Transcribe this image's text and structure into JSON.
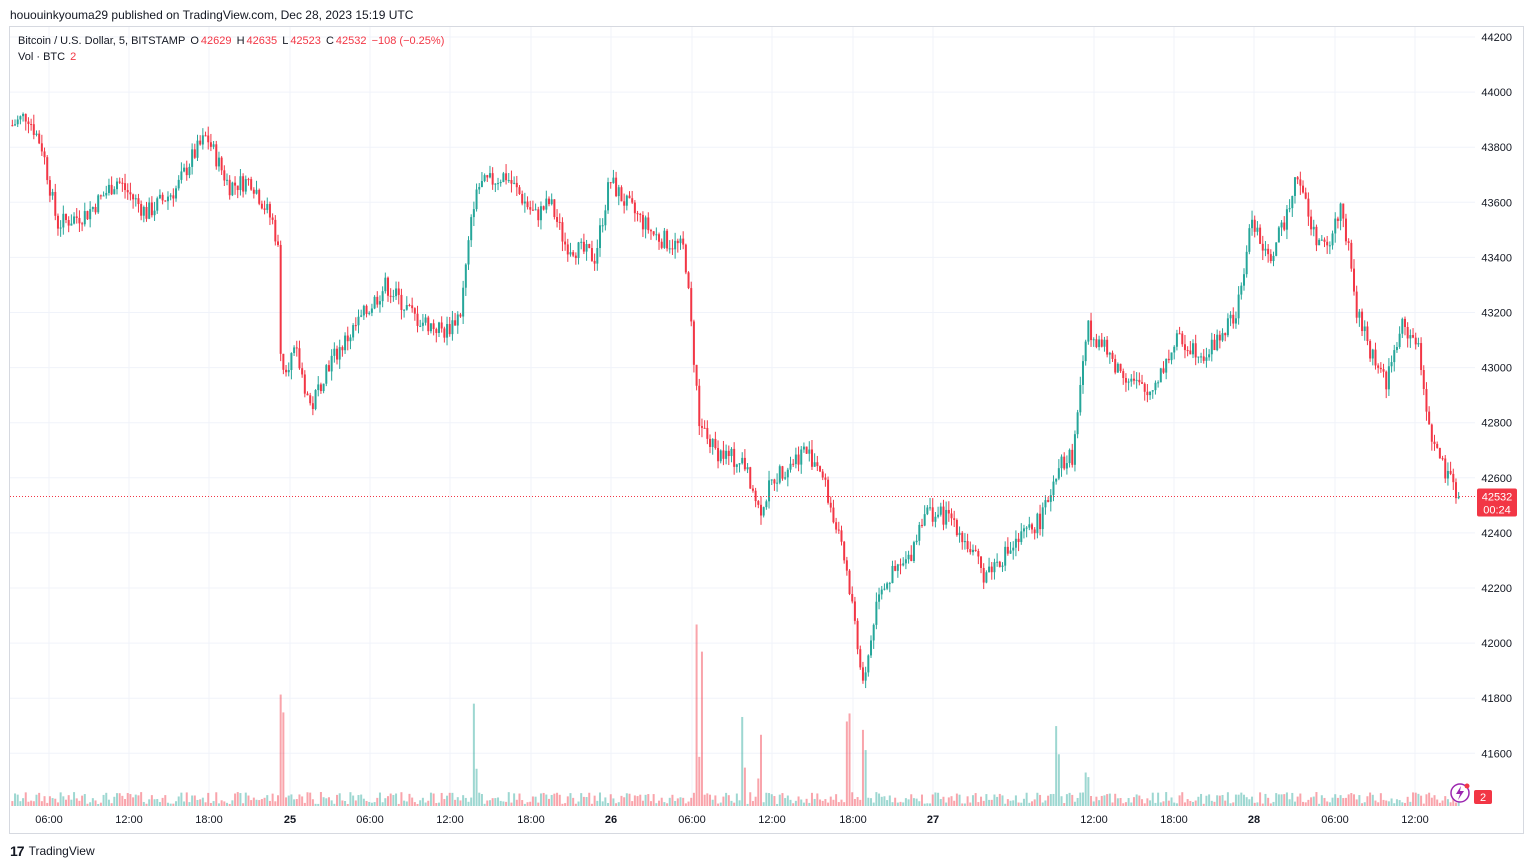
{
  "publisher_line": "hououinkyouma29 published on TradingView.com, Dec 28, 2023 15:19 UTC",
  "legend": {
    "symbol": "Bitcoin / U.S. Dollar, 5, BITSTAMP",
    "o_label": "O",
    "o_value": "42629",
    "h_label": "H",
    "h_value": "42635",
    "l_label": "L",
    "l_value": "42523",
    "c_label": "C",
    "c_value": "42532",
    "change": "−108 (−0.25%)",
    "vol_label": "Vol · BTC",
    "vol_value": "2"
  },
  "price_tag": {
    "price": "42532",
    "countdown": "00:24"
  },
  "volume_tag": "2",
  "footer": {
    "logo": "17",
    "brand": "TradingView"
  },
  "colors": {
    "up": "#26a69a",
    "down": "#f23645",
    "grid": "#f0f3fa",
    "text": "#131722"
  },
  "chart_data": {
    "type": "candlestick",
    "symbol": "BTCUSD",
    "exchange": "BITSTAMP",
    "interval": "5",
    "ylim": [
      41450,
      44250
    ],
    "y_ticks": [
      44200,
      44000,
      43800,
      43600,
      43400,
      43200,
      43000,
      42800,
      42600,
      42400,
      42200,
      42000,
      41800,
      41600
    ],
    "x_ticks": [
      "06:00",
      "12:00",
      "18:00",
      "25",
      "06:00",
      "12:00",
      "18:00",
      "26",
      "06:00",
      "12:00",
      "18:00",
      "27",
      "12:00",
      "18:00",
      "28",
      "06:00",
      "12:00"
    ],
    "last_price": 42532,
    "grid": true,
    "price_path_approx": [
      [
        0,
        43880
      ],
      [
        0.01,
        43920
      ],
      [
        0.02,
        43800
      ],
      [
        0.03,
        43520
      ],
      [
        0.05,
        43560
      ],
      [
        0.07,
        43680
      ],
      [
        0.09,
        43560
      ],
      [
        0.11,
        43650
      ],
      [
        0.12,
        43760
      ],
      [
        0.13,
        43840
      ],
      [
        0.145,
        43660
      ],
      [
        0.16,
        43680
      ],
      [
        0.175,
        43520
      ],
      [
        0.178,
        43420
      ],
      [
        0.18,
        43000
      ],
      [
        0.19,
        43050
      ],
      [
        0.2,
        42850
      ],
      [
        0.21,
        43000
      ],
      [
        0.23,
        43150
      ],
      [
        0.25,
        43300
      ],
      [
        0.27,
        43180
      ],
      [
        0.29,
        43130
      ],
      [
        0.3,
        43200
      ],
      [
        0.31,
        43650
      ],
      [
        0.33,
        43700
      ],
      [
        0.35,
        43550
      ],
      [
        0.36,
        43600
      ],
      [
        0.37,
        43450
      ],
      [
        0.39,
        43400
      ],
      [
        0.4,
        43680
      ],
      [
        0.41,
        43600
      ],
      [
        0.43,
        43480
      ],
      [
        0.45,
        43430
      ],
      [
        0.46,
        42800
      ],
      [
        0.47,
        42700
      ],
      [
        0.49,
        42650
      ],
      [
        0.5,
        42480
      ],
      [
        0.51,
        42600
      ],
      [
        0.53,
        42700
      ],
      [
        0.54,
        42650
      ],
      [
        0.55,
        42450
      ],
      [
        0.56,
        42220
      ],
      [
        0.57,
        41850
      ],
      [
        0.58,
        42200
      ],
      [
        0.59,
        42250
      ],
      [
        0.6,
        42300
      ],
      [
        0.61,
        42480
      ],
      [
        0.63,
        42450
      ],
      [
        0.65,
        42250
      ],
      [
        0.67,
        42350
      ],
      [
        0.69,
        42460
      ],
      [
        0.7,
        42650
      ],
      [
        0.71,
        42680
      ],
      [
        0.72,
        43150
      ],
      [
        0.74,
        43000
      ],
      [
        0.76,
        42900
      ],
      [
        0.78,
        43100
      ],
      [
        0.8,
        43050
      ],
      [
        0.82,
        43200
      ],
      [
        0.83,
        43550
      ],
      [
        0.84,
        43380
      ],
      [
        0.85,
        43500
      ],
      [
        0.86,
        43720
      ],
      [
        0.87,
        43500
      ],
      [
        0.88,
        43420
      ],
      [
        0.89,
        43600
      ],
      [
        0.9,
        43200
      ],
      [
        0.91,
        43050
      ],
      [
        0.92,
        42950
      ],
      [
        0.93,
        43150
      ],
      [
        0.94,
        43100
      ],
      [
        0.95,
        42750
      ],
      [
        0.96,
        42600
      ],
      [
        0.97,
        42532
      ]
    ],
    "volume_spikes_approx": [
      [
        0.18,
        230
      ],
      [
        0.31,
        100
      ],
      [
        0.46,
        280
      ],
      [
        0.49,
        120
      ],
      [
        0.5,
        90
      ],
      [
        0.56,
        80
      ],
      [
        0.57,
        60
      ],
      [
        0.7,
        160
      ],
      [
        0.72,
        70
      ]
    ]
  }
}
